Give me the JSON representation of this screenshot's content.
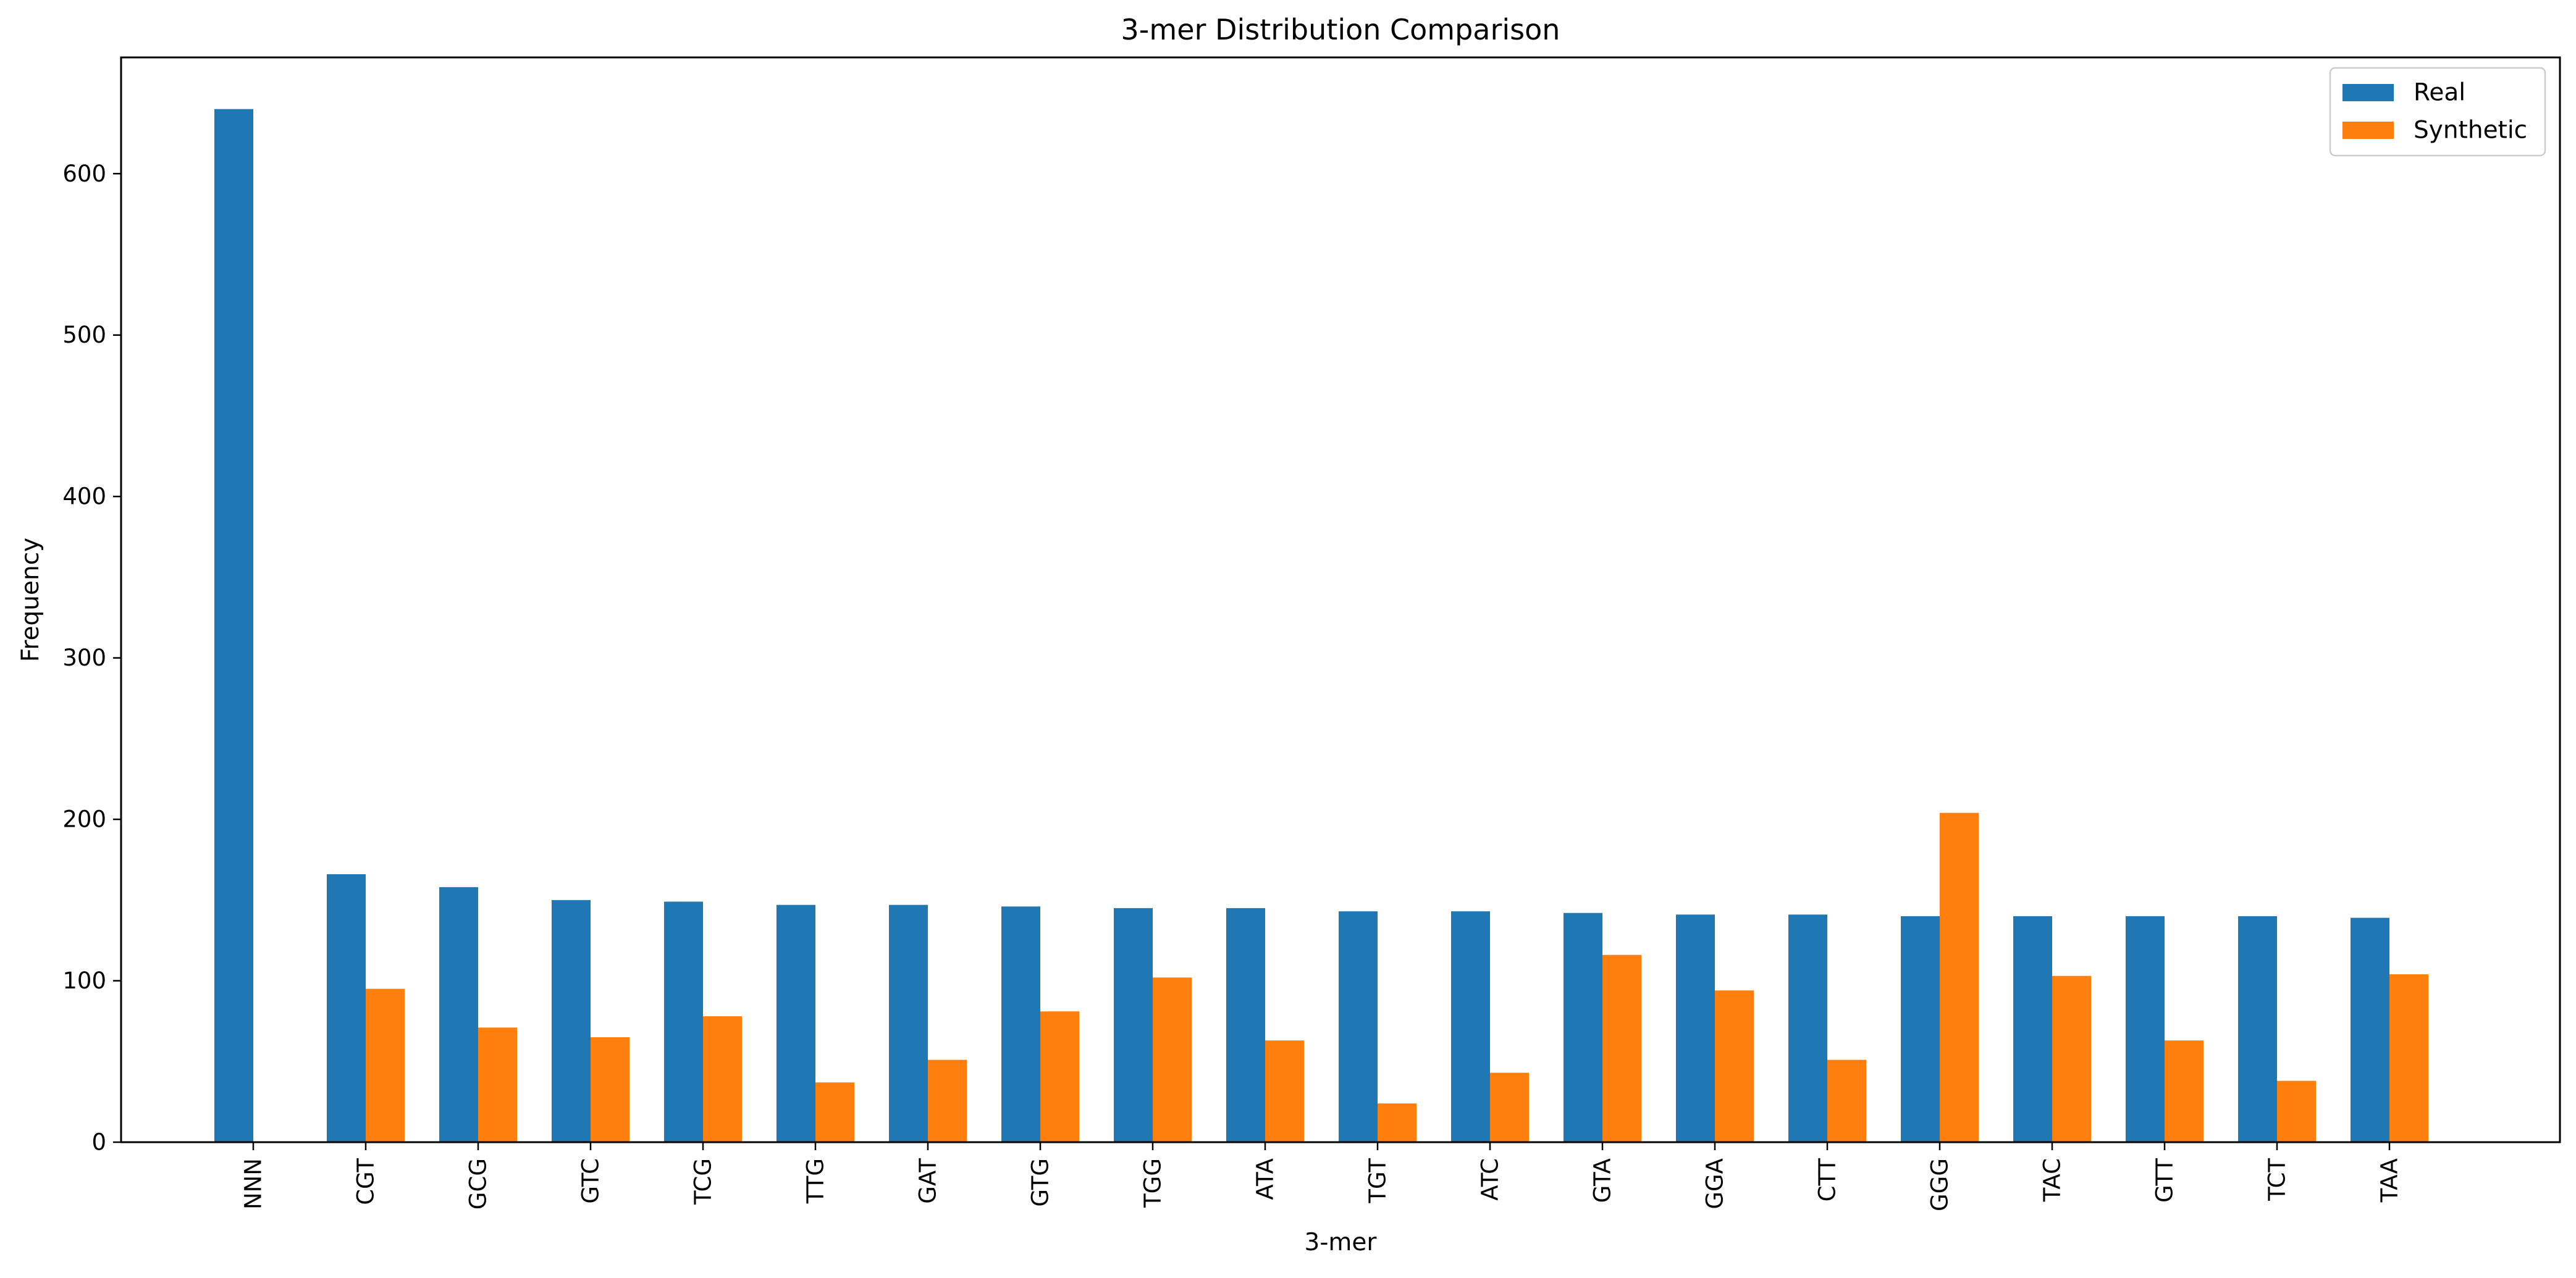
{
  "chart_data": {
    "type": "bar",
    "title": "3-mer Distribution Comparison",
    "xlabel": "3-mer",
    "ylabel": "Frequency",
    "ylim": [
      0,
      672
    ],
    "yticks": [
      "0",
      "100",
      "200",
      "300",
      "400",
      "500",
      "600"
    ],
    "categories": [
      "NNN",
      "CGT",
      "GCG",
      "GTC",
      "TCG",
      "TTG",
      "GAT",
      "GTG",
      "TGG",
      "ATA",
      "TGT",
      "ATC",
      "GTA",
      "GGA",
      "CTT",
      "GGG",
      "TAC",
      "GTT",
      "TCT",
      "TAA"
    ],
    "series": [
      {
        "name": "Real",
        "color": "#1f77b4",
        "values": [
          640,
          166,
          158,
          150,
          149,
          147,
          147,
          146,
          145,
          145,
          143,
          143,
          142,
          141,
          141,
          140,
          140,
          140,
          140,
          139
        ]
      },
      {
        "name": "Synthetic",
        "color": "#ff7f0e",
        "values": [
          0,
          95,
          71,
          65,
          78,
          37,
          51,
          81,
          102,
          63,
          24,
          43,
          116,
          94,
          51,
          204,
          103,
          63,
          38,
          104
        ]
      }
    ],
    "grid": false,
    "legend_position": "top-right"
  }
}
